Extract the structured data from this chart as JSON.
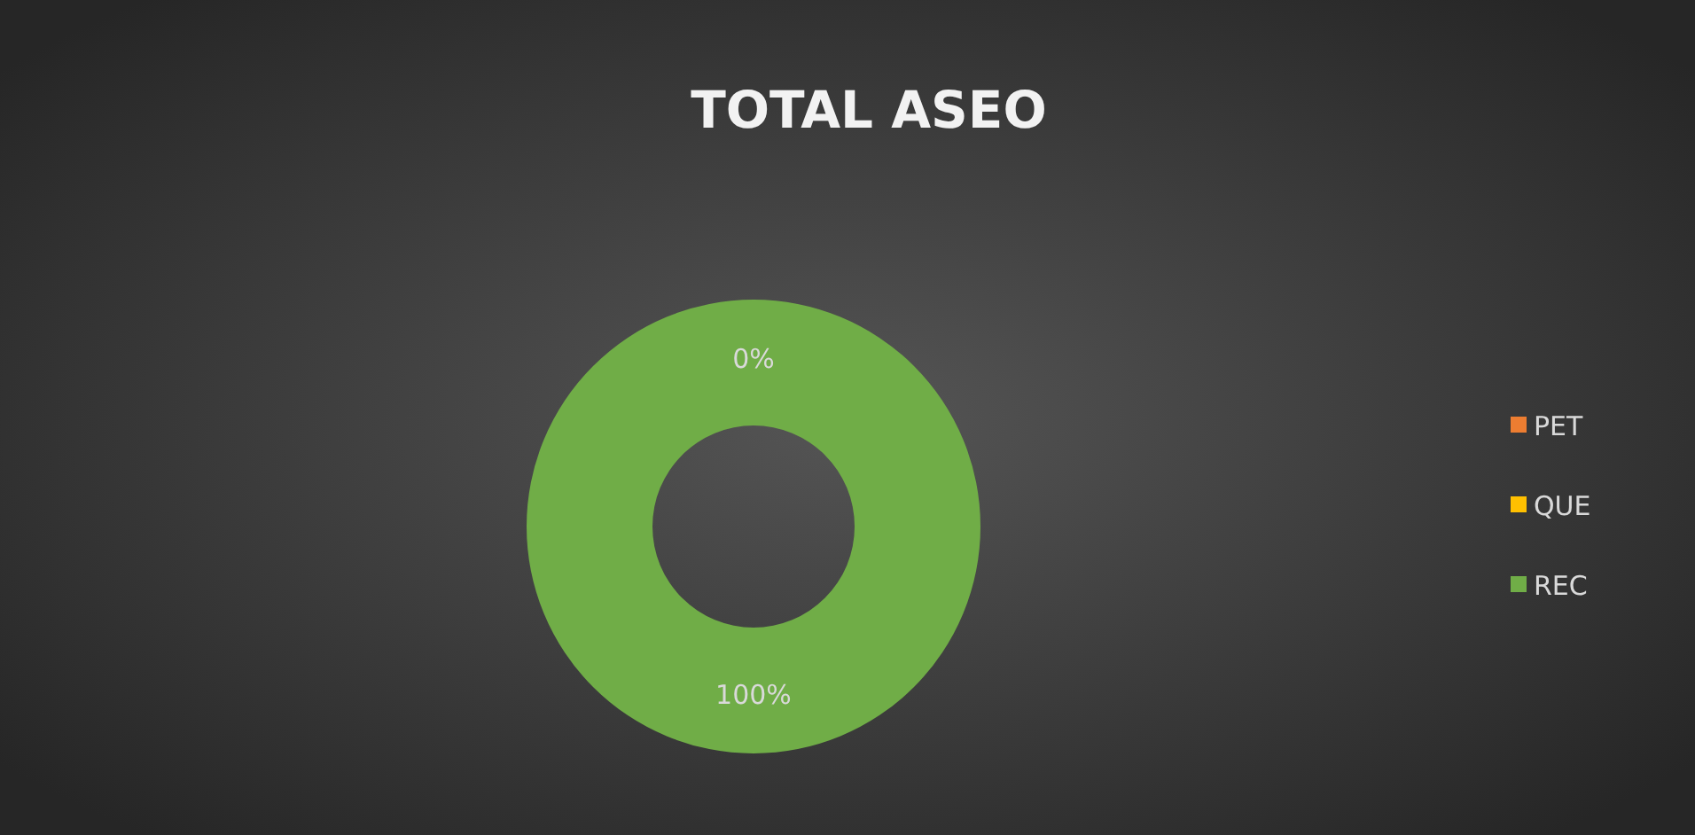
{
  "chart_data": {
    "type": "donut",
    "title": "TOTAL ASEO",
    "categories": [
      "PET",
      "QUE",
      "REC"
    ],
    "values": [
      0,
      0,
      100
    ],
    "colors": [
      "#ed7d31",
      "#ffc000",
      "#70ad47"
    ],
    "value_labels": [
      "0%",
      null,
      "100%"
    ],
    "legend": "right"
  }
}
